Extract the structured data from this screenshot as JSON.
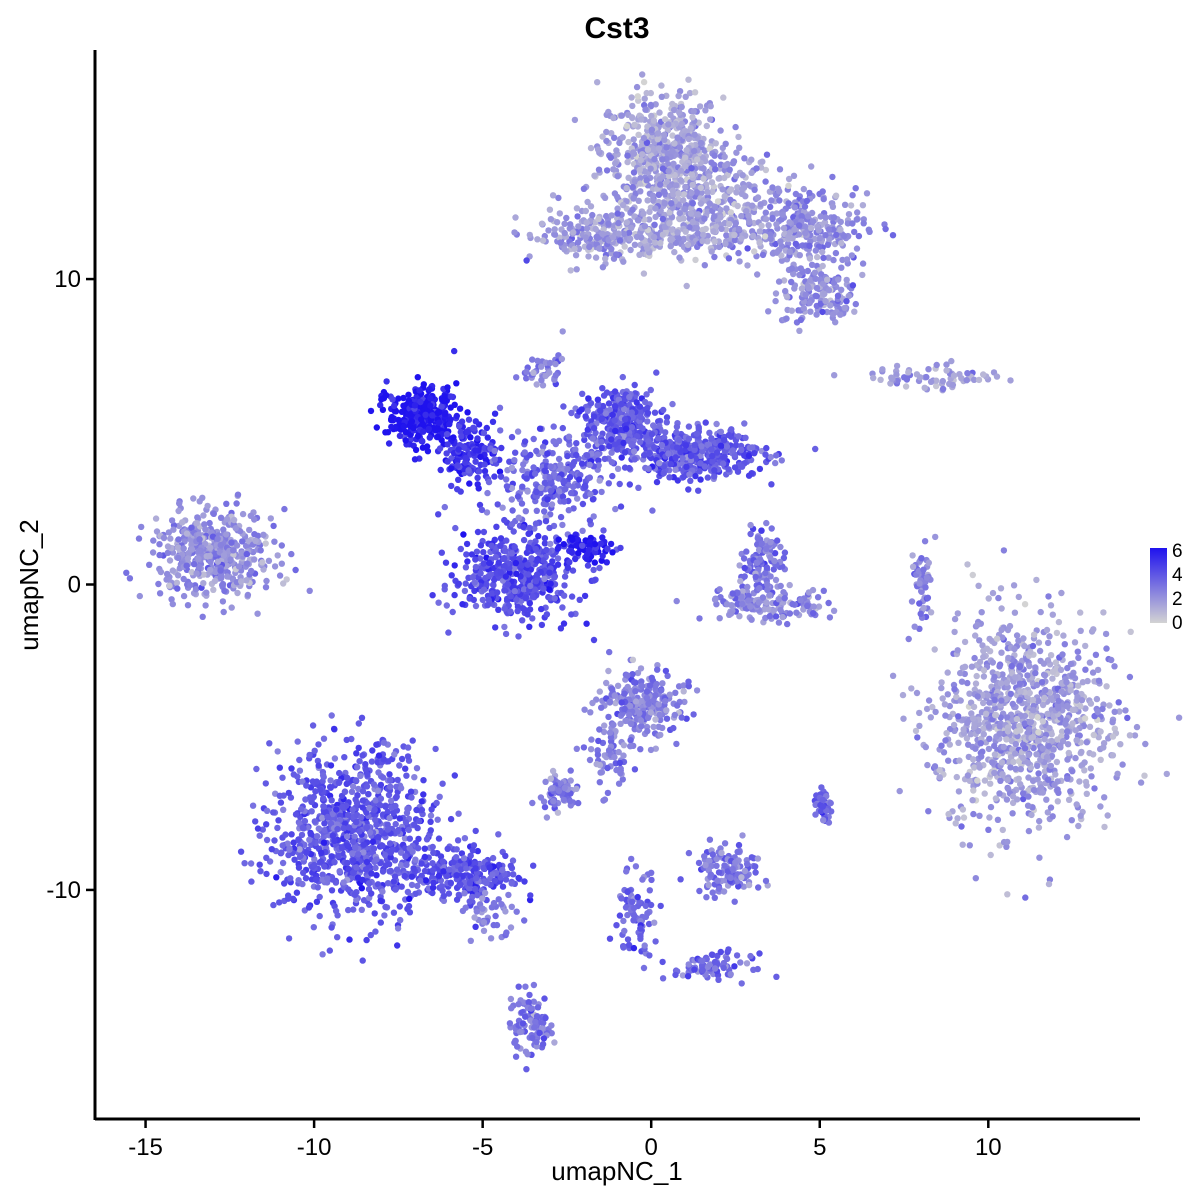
{
  "chart_data": {
    "type": "scatter",
    "title": "Cst3",
    "xlabel": "umapNC_1",
    "ylabel": "umapNC_2",
    "xlim": [
      -16.5,
      14.5
    ],
    "ylim": [
      -17.5,
      17.5
    ],
    "xticks": [
      -15,
      -10,
      -5,
      0,
      5,
      10
    ],
    "yticks": [
      -10,
      0,
      10
    ],
    "xtick_labels": [
      "-15",
      "-10",
      "-5",
      "0",
      "5",
      "10"
    ],
    "ytick_labels": [
      "-10",
      "0",
      "10"
    ],
    "grid": false,
    "legend": {
      "placement": "right",
      "type": "colorbar",
      "min": 0,
      "max": 6,
      "ticks": [
        "0",
        "2",
        "4",
        "6"
      ],
      "low_color": "#d3d3d3",
      "high_color": "#1f12ee"
    },
    "clusters": [
      {
        "cx": 0.3,
        "cy": 14.2,
        "sx": 0.9,
        "sy": 1.0,
        "n": 500,
        "expr": 1.5
      },
      {
        "cx": 1.6,
        "cy": 12.6,
        "sx": 1.2,
        "sy": 0.9,
        "n": 350,
        "expr": 1.7
      },
      {
        "cx": 4.6,
        "cy": 11.6,
        "sx": 0.9,
        "sy": 0.6,
        "n": 250,
        "expr": 2.1
      },
      {
        "cx": 5.0,
        "cy": 9.6,
        "sx": 0.6,
        "sy": 0.6,
        "n": 150,
        "expr": 2.2
      },
      {
        "cx": -1.6,
        "cy": 11.4,
        "sx": 1.0,
        "sy": 0.4,
        "n": 200,
        "expr": 1.8
      },
      {
        "cx": 1.0,
        "cy": 11.4,
        "sx": 1.3,
        "sy": 0.3,
        "n": 150,
        "expr": 1.5
      },
      {
        "cx": 8.5,
        "cy": 6.8,
        "sx": 1.0,
        "sy": 0.2,
        "n": 70,
        "expr": 1.8
      },
      {
        "cx": -13.0,
        "cy": 1.0,
        "sx": 0.9,
        "sy": 0.7,
        "n": 450,
        "expr": 2.1
      },
      {
        "cx": -6.8,
        "cy": 5.5,
        "sx": 0.5,
        "sy": 0.5,
        "n": 300,
        "expr": 5.8
      },
      {
        "cx": -5.4,
        "cy": 4.4,
        "sx": 0.4,
        "sy": 0.5,
        "n": 150,
        "expr": 5.0
      },
      {
        "cx": -3.0,
        "cy": 3.5,
        "sx": 1.0,
        "sy": 0.8,
        "n": 280,
        "expr": 3.3
      },
      {
        "cx": -0.8,
        "cy": 5.3,
        "sx": 0.6,
        "sy": 0.6,
        "n": 300,
        "expr": 3.8
      },
      {
        "cx": 1.3,
        "cy": 4.3,
        "sx": 1.0,
        "sy": 0.4,
        "n": 400,
        "expr": 3.8
      },
      {
        "cx": -4.0,
        "cy": 0.3,
        "sx": 0.9,
        "sy": 0.7,
        "n": 500,
        "expr": 4.2
      },
      {
        "cx": -1.9,
        "cy": 1.2,
        "sx": 0.4,
        "sy": 0.2,
        "n": 60,
        "expr": 5.6
      },
      {
        "cx": 3.3,
        "cy": 0.8,
        "sx": 0.3,
        "sy": 0.5,
        "n": 100,
        "expr": 3.0
      },
      {
        "cx": 3.4,
        "cy": -0.6,
        "sx": 0.9,
        "sy": 0.3,
        "n": 150,
        "expr": 2.4
      },
      {
        "cx": 8.0,
        "cy": 0.0,
        "sx": 0.15,
        "sy": 0.6,
        "n": 50,
        "expr": 2.8
      },
      {
        "cx": 11.0,
        "cy": -4.5,
        "sx": 1.3,
        "sy": 1.7,
        "n": 1000,
        "expr": 1.7
      },
      {
        "cx": -0.3,
        "cy": -4.0,
        "sx": 0.6,
        "sy": 0.6,
        "n": 250,
        "expr": 2.6
      },
      {
        "cx": -2.7,
        "cy": -6.8,
        "sx": 0.3,
        "sy": 0.3,
        "n": 70,
        "expr": 2.7
      },
      {
        "cx": -8.8,
        "cy": -8.2,
        "sx": 1.2,
        "sy": 1.4,
        "n": 900,
        "expr": 3.8
      },
      {
        "cx": -5.5,
        "cy": -9.5,
        "sx": 0.8,
        "sy": 0.4,
        "n": 250,
        "expr": 4.0
      },
      {
        "cx": -3.6,
        "cy": -14.4,
        "sx": 0.3,
        "sy": 0.5,
        "n": 100,
        "expr": 3.0
      },
      {
        "cx": 2.3,
        "cy": -9.3,
        "sx": 0.5,
        "sy": 0.4,
        "n": 120,
        "expr": 2.8
      },
      {
        "cx": 5.1,
        "cy": -7.3,
        "sx": 0.15,
        "sy": 0.25,
        "n": 40,
        "expr": 3.5
      },
      {
        "cx": -4.8,
        "cy": -11.0,
        "sx": 0.4,
        "sy": 0.5,
        "n": 40,
        "expr": 2.5
      },
      {
        "cx": -0.4,
        "cy": -10.8,
        "sx": 0.3,
        "sy": 0.7,
        "n": 80,
        "expr": 3.3
      },
      {
        "cx": 1.8,
        "cy": -12.5,
        "sx": 0.6,
        "sy": 0.2,
        "n": 80,
        "expr": 3.3
      },
      {
        "cx": -1.3,
        "cy": -5.6,
        "sx": 0.3,
        "sy": 0.6,
        "n": 60,
        "expr": 2.5
      },
      {
        "cx": -3.2,
        "cy": 7.0,
        "sx": 0.3,
        "sy": 0.3,
        "n": 40,
        "expr": 2.6
      }
    ]
  }
}
